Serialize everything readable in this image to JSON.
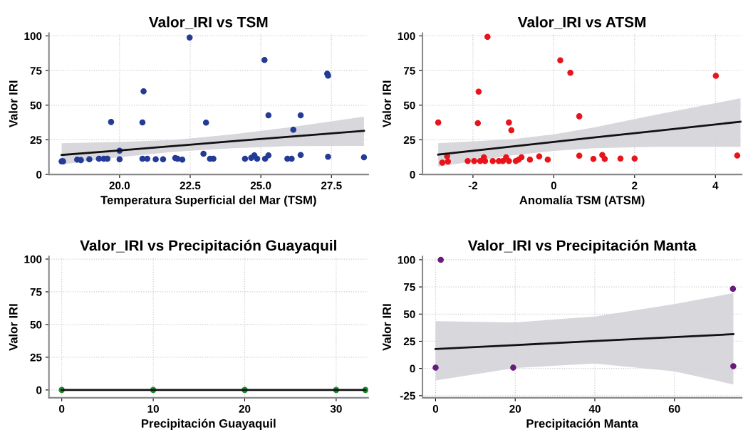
{
  "chart_data": [
    {
      "type": "scatter",
      "title": "Valor_IRI vs TSM",
      "xlabel": "Temperatura Superficial del Mar (TSM)",
      "ylabel": "Valor IRI",
      "xlim": [
        17.5,
        28.8
      ],
      "ylim": [
        0,
        102
      ],
      "xticks": [
        {
          "value": 20,
          "label": "20.0"
        },
        {
          "value": 22.5,
          "label": "22.5"
        },
        {
          "value": 25,
          "label": "25.0"
        },
        {
          "value": 27.5,
          "label": "27.5"
        }
      ],
      "yticks": [
        0,
        25,
        50,
        75,
        100
      ],
      "grid": true,
      "series": [
        {
          "marker": "circle",
          "color": "#233a96",
          "x": [
            17.95,
            18.0,
            18.5,
            18.63,
            18.93,
            19.27,
            19.44,
            19.57,
            19.7,
            20.0,
            20.0,
            20.81,
            20.85,
            20.81,
            20.98,
            21.28,
            21.54,
            21.97,
            22.05,
            22.22,
            22.48,
            22.97,
            23.06,
            23.2,
            23.32,
            24.44,
            24.66,
            24.77,
            24.87,
            25.13,
            25.15,
            25.27,
            25.27,
            25.94,
            26.09,
            26.15,
            26.41,
            26.41,
            27.35,
            27.38,
            27.38,
            28.65
          ],
          "values": [
            9.5,
            9.5,
            10.7,
            10.4,
            11,
            11.4,
            11.4,
            11.4,
            37.9,
            17.2,
            11,
            37.6,
            60,
            11.4,
            11.4,
            11,
            11,
            11.9,
            11.4,
            10.7,
            98.8,
            15,
            37.4,
            11.4,
            11.4,
            11.4,
            12,
            13.8,
            11.4,
            82.6,
            11.4,
            13.8,
            42.7,
            11.4,
            11.4,
            32.3,
            42.7,
            14.1,
            72.8,
            71.4,
            12.8,
            12.4
          ]
        },
        {
          "type": "line",
          "color": "#111111",
          "x": [
            17.95,
            20,
            22,
            24,
            26,
            28.65
          ],
          "values": [
            14.1,
            17.4,
            20.7,
            24,
            27.2,
            31.5
          ],
          "lower": [
            7.3,
            12.5,
            16.5,
            19,
            20.5,
            20.6
          ],
          "upper": [
            22.6,
            23.5,
            25,
            29,
            34,
            41.7
          ]
        }
      ]
    },
    {
      "type": "scatter",
      "title": "Valor_IRI vs ATSM",
      "xlabel": "Anomalía TSM (ATSM)",
      "ylabel": "Valor IRI",
      "xlim": [
        -3.25,
        4.65
      ],
      "ylim": [
        0,
        102
      ],
      "xticks": [
        {
          "value": -2,
          "label": "-2"
        },
        0,
        2,
        4
      ],
      "yticks": [
        0,
        25,
        50,
        75,
        100
      ],
      "grid": true,
      "series": [
        {
          "marker": "circle",
          "color": "#e8141a",
          "x": [
            -2.86,
            -2.76,
            -2.62,
            -2.64,
            -2.13,
            -1.97,
            -1.86,
            -1.88,
            -1.82,
            -1.73,
            -1.7,
            -1.64,
            -1.51,
            -1.36,
            -1.26,
            -1.18,
            -1.11,
            -1.05,
            -1.11,
            -0.94,
            -0.87,
            -0.8,
            -0.59,
            -0.36,
            -0.15,
            0.16,
            0.41,
            0.63,
            0.63,
            0.98,
            1.2,
            1.26,
            1.65,
            2.0,
            4.01,
            4.54
          ],
          "values": [
            37.5,
            8.6,
            9.3,
            13.2,
            9.7,
            9.7,
            59.8,
            37.1,
            9.7,
            12.4,
            9.7,
            99.3,
            9.7,
            9.7,
            9.7,
            12.4,
            37.5,
            31.9,
            9.7,
            9.7,
            10.7,
            12.4,
            10.7,
            13,
            10.7,
            82.4,
            73.4,
            42,
            13.6,
            11.2,
            14.1,
            11.2,
            11.5,
            11.5,
            71.2,
            13.7
          ]
        },
        {
          "type": "line",
          "color": "#111111",
          "x": [
            -2.86,
            -1,
            0,
            1,
            2.5,
            4.62
          ],
          "values": [
            14.4,
            20.3,
            23.5,
            26.7,
            31.4,
            38.1
          ],
          "lower": [
            5.6,
            14,
            17,
            19,
            20,
            20
          ],
          "upper": [
            22.5,
            25.5,
            29,
            34,
            43,
            55
          ]
        }
      ]
    },
    {
      "type": "scatter",
      "title": "Valor_IRI vs Precipitación Guayaquil",
      "xlabel": "Precipitación Guayaquil",
      "ylabel": "Valor IRI",
      "xlim": [
        -1.4,
        33.5
      ],
      "ylim": [
        -6,
        102
      ],
      "xticks": [
        0,
        10,
        20,
        30
      ],
      "yticks": [
        0,
        25,
        50,
        75,
        100
      ],
      "grid": true,
      "series": [
        {
          "marker": "circle",
          "color": "#1a8a2e",
          "x": [
            0,
            10,
            20,
            30,
            33.2
          ],
          "values": [
            0,
            0,
            0,
            0,
            0
          ]
        },
        {
          "type": "line",
          "color": "#111111",
          "x": [
            0,
            33.2
          ],
          "values": [
            0,
            0
          ]
        }
      ]
    },
    {
      "type": "scatter",
      "title": "Valor_IRI vs Precipitación Manta",
      "xlabel": "Precipitación Manta",
      "ylabel": "Valor IRI",
      "xlim": [
        -3.3,
        76.9
      ],
      "ylim": [
        -27,
        103
      ],
      "xticks": [
        0,
        20,
        40,
        60
      ],
      "yticks": [
        {
          "value": -25,
          "label": "-25"
        },
        0,
        25,
        50,
        75,
        100
      ],
      "grid": true,
      "series": [
        {
          "marker": "circle",
          "color": "#6a1a7a",
          "x": [
            0,
            1.3,
            19.5,
            74.7,
            74.8
          ],
          "values": [
            0.8,
            100,
            0.8,
            73.3,
            2.1
          ]
        },
        {
          "type": "line",
          "color": "#111111",
          "x": [
            0,
            20,
            40,
            60,
            74.8
          ],
          "values": [
            17.9,
            21.5,
            25.2,
            28.8,
            31.5
          ],
          "lower": [
            -11.1,
            0.4,
            4.6,
            -2.7,
            -14.7
          ],
          "upper": [
            43.5,
            42.4,
            47.7,
            59.2,
            69.3
          ]
        }
      ]
    }
  ]
}
